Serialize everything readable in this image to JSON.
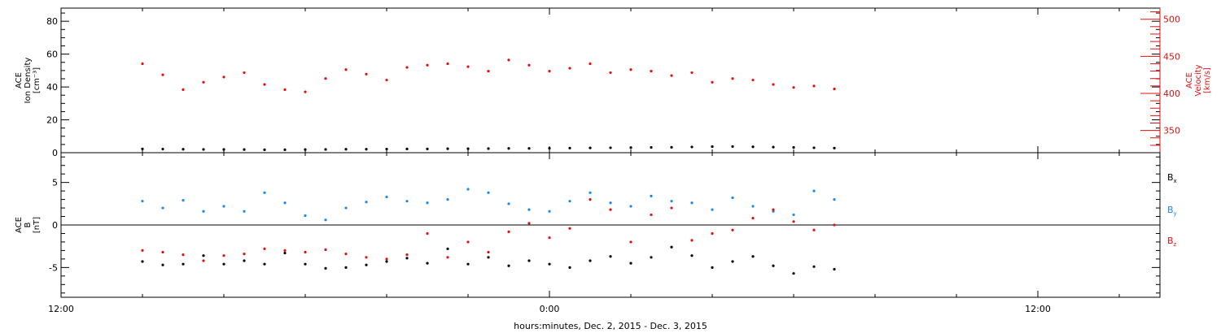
{
  "chart_data": [
    {
      "type": "scatter",
      "panel": "top",
      "ylabel_lines": [
        "ACE",
        "Ion Density",
        "[cm⁻³]"
      ],
      "y2label_lines": [
        "ACE",
        "Velocity",
        "[km/s]"
      ],
      "ylim": [
        0,
        88
      ],
      "y2lim": [
        320,
        515
      ],
      "yticks": [
        0,
        20,
        40,
        60,
        80
      ],
      "yticklabels": [
        "0",
        "20",
        "40",
        "60",
        "80"
      ],
      "y2ticks": [
        350,
        400,
        450,
        500
      ],
      "y2ticklabels": [
        "350",
        "400",
        "450",
        "500"
      ],
      "y2_color": "#e01010",
      "series": [
        {
          "key": "density",
          "axis": "left",
          "color": "#000000",
          "points": [
            [
              -10,
              2.3
            ],
            [
              -9.5,
              2.2
            ],
            [
              -9,
              2.1
            ],
            [
              -8.5,
              2.0
            ],
            [
              -8,
              2.0
            ],
            [
              -7.5,
              1.9
            ],
            [
              -7,
              1.8
            ],
            [
              -6.5,
              1.8
            ],
            [
              -6,
              1.9
            ],
            [
              -5.5,
              2.0
            ],
            [
              -5,
              2.1
            ],
            [
              -4.5,
              2.1
            ],
            [
              -4,
              2.2
            ],
            [
              -3.5,
              2.3
            ],
            [
              -3,
              2.3
            ],
            [
              -2.5,
              2.4
            ],
            [
              -2,
              2.4
            ],
            [
              -1.5,
              2.5
            ],
            [
              -1,
              2.6
            ],
            [
              -0.5,
              2.6
            ],
            [
              0,
              2.7
            ],
            [
              0.5,
              2.8
            ],
            [
              1,
              2.9
            ],
            [
              1.5,
              3.0
            ],
            [
              2,
              3.1
            ],
            [
              2.5,
              3.2
            ],
            [
              3,
              3.3
            ],
            [
              3.5,
              3.5
            ],
            [
              4,
              3.7
            ],
            [
              4.5,
              3.8
            ],
            [
              5,
              3.6
            ],
            [
              5.5,
              3.4
            ],
            [
              6,
              3.2
            ],
            [
              6.5,
              3.0
            ],
            [
              7,
              2.8
            ]
          ]
        },
        {
          "key": "velocity",
          "axis": "right",
          "color": "#e01010",
          "points": [
            [
              -10,
              440
            ],
            [
              -9.5,
              425
            ],
            [
              -9,
              405
            ],
            [
              -8.5,
              415
            ],
            [
              -8,
              422
            ],
            [
              -7.5,
              428
            ],
            [
              -7,
              412
            ],
            [
              -6.5,
              405
            ],
            [
              -6,
              402
            ],
            [
              -5.5,
              420
            ],
            [
              -5,
              432
            ],
            [
              -4.5,
              426
            ],
            [
              -4,
              418
            ],
            [
              -3.5,
              435
            ],
            [
              -3,
              438
            ],
            [
              -2.5,
              440
            ],
            [
              -2,
              436
            ],
            [
              -1.5,
              430
            ],
            [
              -1,
              445
            ],
            [
              -0.5,
              438
            ],
            [
              0,
              430
            ],
            [
              0.5,
              434
            ],
            [
              1,
              440
            ],
            [
              1.5,
              428
            ],
            [
              2,
              432
            ],
            [
              2.5,
              430
            ],
            [
              3,
              424
            ],
            [
              3.5,
              428
            ],
            [
              4,
              415
            ],
            [
              4.5,
              420
            ],
            [
              5,
              418
            ],
            [
              5.5,
              412
            ],
            [
              6,
              408
            ],
            [
              6.5,
              410
            ],
            [
              7,
              406
            ]
          ]
        }
      ]
    },
    {
      "type": "scatter",
      "panel": "bottom",
      "ylabel_lines": [
        "ACE",
        "B",
        "[nT]"
      ],
      "ylim": [
        -8.5,
        8.5
      ],
      "yticks": [
        -5,
        0,
        5
      ],
      "yticklabels": [
        "-5",
        "0",
        "5"
      ],
      "zero_line": true,
      "legend_position": "right",
      "series": [
        {
          "key": "bx",
          "name": "B",
          "subscript": "x",
          "color": "#000000",
          "points": [
            [
              -10,
              -4.3
            ],
            [
              -9.5,
              -4.7
            ],
            [
              -9,
              -4.6
            ],
            [
              -8.5,
              -3.6
            ],
            [
              -8,
              -4.6
            ],
            [
              -7.5,
              -4.2
            ],
            [
              -7,
              -4.6
            ],
            [
              -6.5,
              -3.3
            ],
            [
              -6,
              -4.6
            ],
            [
              -5.5,
              -5.1
            ],
            [
              -5,
              -5.0
            ],
            [
              -4.5,
              -4.7
            ],
            [
              -4,
              -4.3
            ],
            [
              -3.5,
              -3.9
            ],
            [
              -3,
              -4.5
            ],
            [
              -2.5,
              -2.8
            ],
            [
              -2,
              -4.6
            ],
            [
              -1.5,
              -3.8
            ],
            [
              -1,
              -4.8
            ],
            [
              -0.5,
              -4.2
            ],
            [
              0,
              -4.6
            ],
            [
              0.5,
              -5.0
            ],
            [
              1,
              -4.2
            ],
            [
              1.5,
              -3.7
            ],
            [
              2,
              -4.5
            ],
            [
              2.5,
              -3.8
            ],
            [
              3,
              -2.6
            ],
            [
              3.5,
              -3.6
            ],
            [
              4,
              -5.0
            ],
            [
              4.5,
              -4.3
            ],
            [
              5,
              -3.7
            ],
            [
              5.5,
              -4.8
            ],
            [
              6,
              -5.7
            ],
            [
              6.5,
              -4.9
            ],
            [
              7,
              -5.2
            ]
          ]
        },
        {
          "key": "by",
          "name": "B",
          "subscript": "y",
          "color": "#1a8ae6",
          "points": [
            [
              -10,
              2.8
            ],
            [
              -9.5,
              2.0
            ],
            [
              -9,
              2.9
            ],
            [
              -8.5,
              1.6
            ],
            [
              -8,
              2.2
            ],
            [
              -7.5,
              1.6
            ],
            [
              -7,
              3.8
            ],
            [
              -6.5,
              2.6
            ],
            [
              -6,
              1.1
            ],
            [
              -5.5,
              0.6
            ],
            [
              -5,
              2.0
            ],
            [
              -4.5,
              2.7
            ],
            [
              -4,
              3.3
            ],
            [
              -3.5,
              2.8
            ],
            [
              -3,
              2.6
            ],
            [
              -2.5,
              3.0
            ],
            [
              -2,
              4.2
            ],
            [
              -1.5,
              3.8
            ],
            [
              -1,
              2.5
            ],
            [
              -0.5,
              1.8
            ],
            [
              0,
              1.6
            ],
            [
              0.5,
              2.8
            ],
            [
              1,
              3.8
            ],
            [
              1.5,
              2.6
            ],
            [
              2,
              2.2
            ],
            [
              2.5,
              3.4
            ],
            [
              3,
              2.8
            ],
            [
              3.5,
              2.6
            ],
            [
              4,
              1.8
            ],
            [
              4.5,
              3.2
            ],
            [
              5,
              2.2
            ],
            [
              5.5,
              1.6
            ],
            [
              6,
              1.2
            ],
            [
              6.5,
              4.0
            ],
            [
              7,
              3.0
            ]
          ]
        },
        {
          "key": "bz",
          "name": "B",
          "subscript": "z",
          "color": "#e01010",
          "points": [
            [
              -10,
              -3.0
            ],
            [
              -9.5,
              -3.2
            ],
            [
              -9,
              -3.5
            ],
            [
              -8.5,
              -4.2
            ],
            [
              -8,
              -3.6
            ],
            [
              -7.5,
              -3.4
            ],
            [
              -7,
              -2.8
            ],
            [
              -6.5,
              -3.0
            ],
            [
              -6,
              -3.2
            ],
            [
              -5.5,
              -2.9
            ],
            [
              -5,
              -3.4
            ],
            [
              -4.5,
              -3.8
            ],
            [
              -4,
              -4.0
            ],
            [
              -3.5,
              -3.5
            ],
            [
              -3,
              -1.0
            ],
            [
              -2.5,
              -3.8
            ],
            [
              -2,
              -2.0
            ],
            [
              -1.5,
              -3.2
            ],
            [
              -1,
              -0.8
            ],
            [
              -0.5,
              0.2
            ],
            [
              0,
              -1.5
            ],
            [
              0.5,
              -0.4
            ],
            [
              1,
              3.0
            ],
            [
              1.5,
              1.8
            ],
            [
              2,
              -2.0
            ],
            [
              2.5,
              1.2
            ],
            [
              3,
              2.0
            ],
            [
              3.5,
              -1.8
            ],
            [
              4,
              -1.0
            ],
            [
              4.5,
              -0.6
            ],
            [
              5,
              0.8
            ],
            [
              5.5,
              1.8
            ],
            [
              6,
              0.4
            ],
            [
              6.5,
              -0.6
            ],
            [
              7,
              0.0
            ]
          ]
        }
      ]
    }
  ],
  "x_axis": {
    "label": "hours:minutes, Dec.  2, 2015 - Dec.  3, 2015",
    "xlim": [
      -12,
      15
    ],
    "ticks": [
      -12,
      0,
      12
    ],
    "ticklabels": [
      "12:00",
      "0:00",
      "12:00"
    ],
    "minor_step": 2
  }
}
